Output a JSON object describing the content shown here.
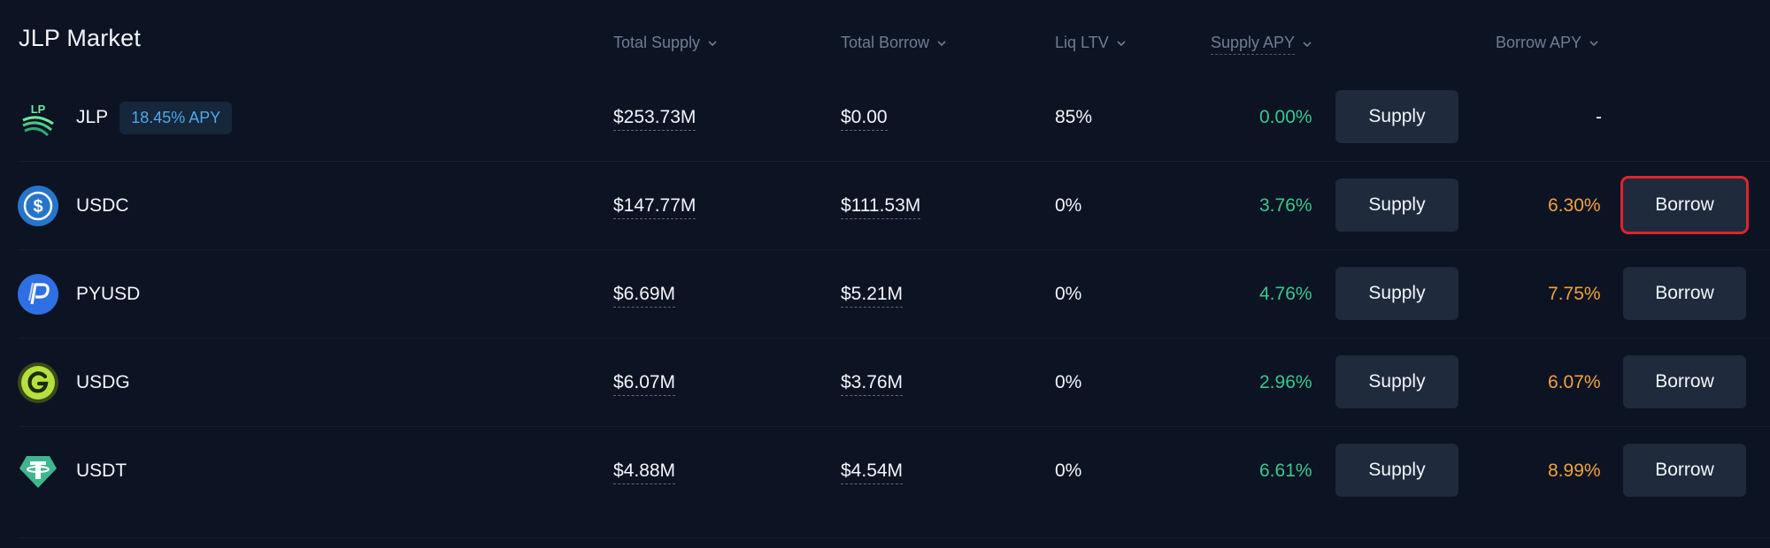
{
  "market": {
    "title": "JLP Market"
  },
  "columns": {
    "total_supply": "Total Supply",
    "total_borrow": "Total Borrow",
    "liq_ltv": "Liq LTV",
    "supply_apy": "Supply APY",
    "borrow_apy": "Borrow APY"
  },
  "rows": [
    {
      "symbol": "JLP",
      "badge": "18.45% APY",
      "icon": "jlp-token-icon",
      "total_supply": "$253.73M",
      "total_borrow": "$0.00",
      "liq_ltv": "85%",
      "supply_apy": "0.00%",
      "supply_label": "Supply",
      "borrow_apy": "-",
      "borrow_label": ""
    },
    {
      "symbol": "USDC",
      "icon": "usdc-token-icon",
      "total_supply": "$147.77M",
      "total_borrow": "$111.53M",
      "liq_ltv": "0%",
      "supply_apy": "3.76%",
      "supply_label": "Supply",
      "borrow_apy": "6.30%",
      "borrow_label": "Borrow"
    },
    {
      "symbol": "PYUSD",
      "icon": "pyusd-token-icon",
      "total_supply": "$6.69M",
      "total_borrow": "$5.21M",
      "liq_ltv": "0%",
      "supply_apy": "4.76%",
      "supply_label": "Supply",
      "borrow_apy": "7.75%",
      "borrow_label": "Borrow"
    },
    {
      "symbol": "USDG",
      "icon": "usdg-token-icon",
      "total_supply": "$6.07M",
      "total_borrow": "$3.76M",
      "liq_ltv": "0%",
      "supply_apy": "2.96%",
      "supply_label": "Supply",
      "borrow_apy": "6.07%",
      "borrow_label": "Borrow"
    },
    {
      "symbol": "USDT",
      "icon": "usdt-token-icon",
      "total_supply": "$4.88M",
      "total_borrow": "$4.54M",
      "liq_ltv": "0%",
      "supply_apy": "6.61%",
      "supply_label": "Supply",
      "borrow_apy": "8.99%",
      "borrow_label": "Borrow"
    }
  ],
  "colors": {
    "background": "#0c1322",
    "supply_apy": "#36c98e",
    "borrow_apy": "#f2a23c",
    "button": "#1f2a3c",
    "badge_text": "#4fa8ea",
    "highlight": "#e0242c"
  }
}
